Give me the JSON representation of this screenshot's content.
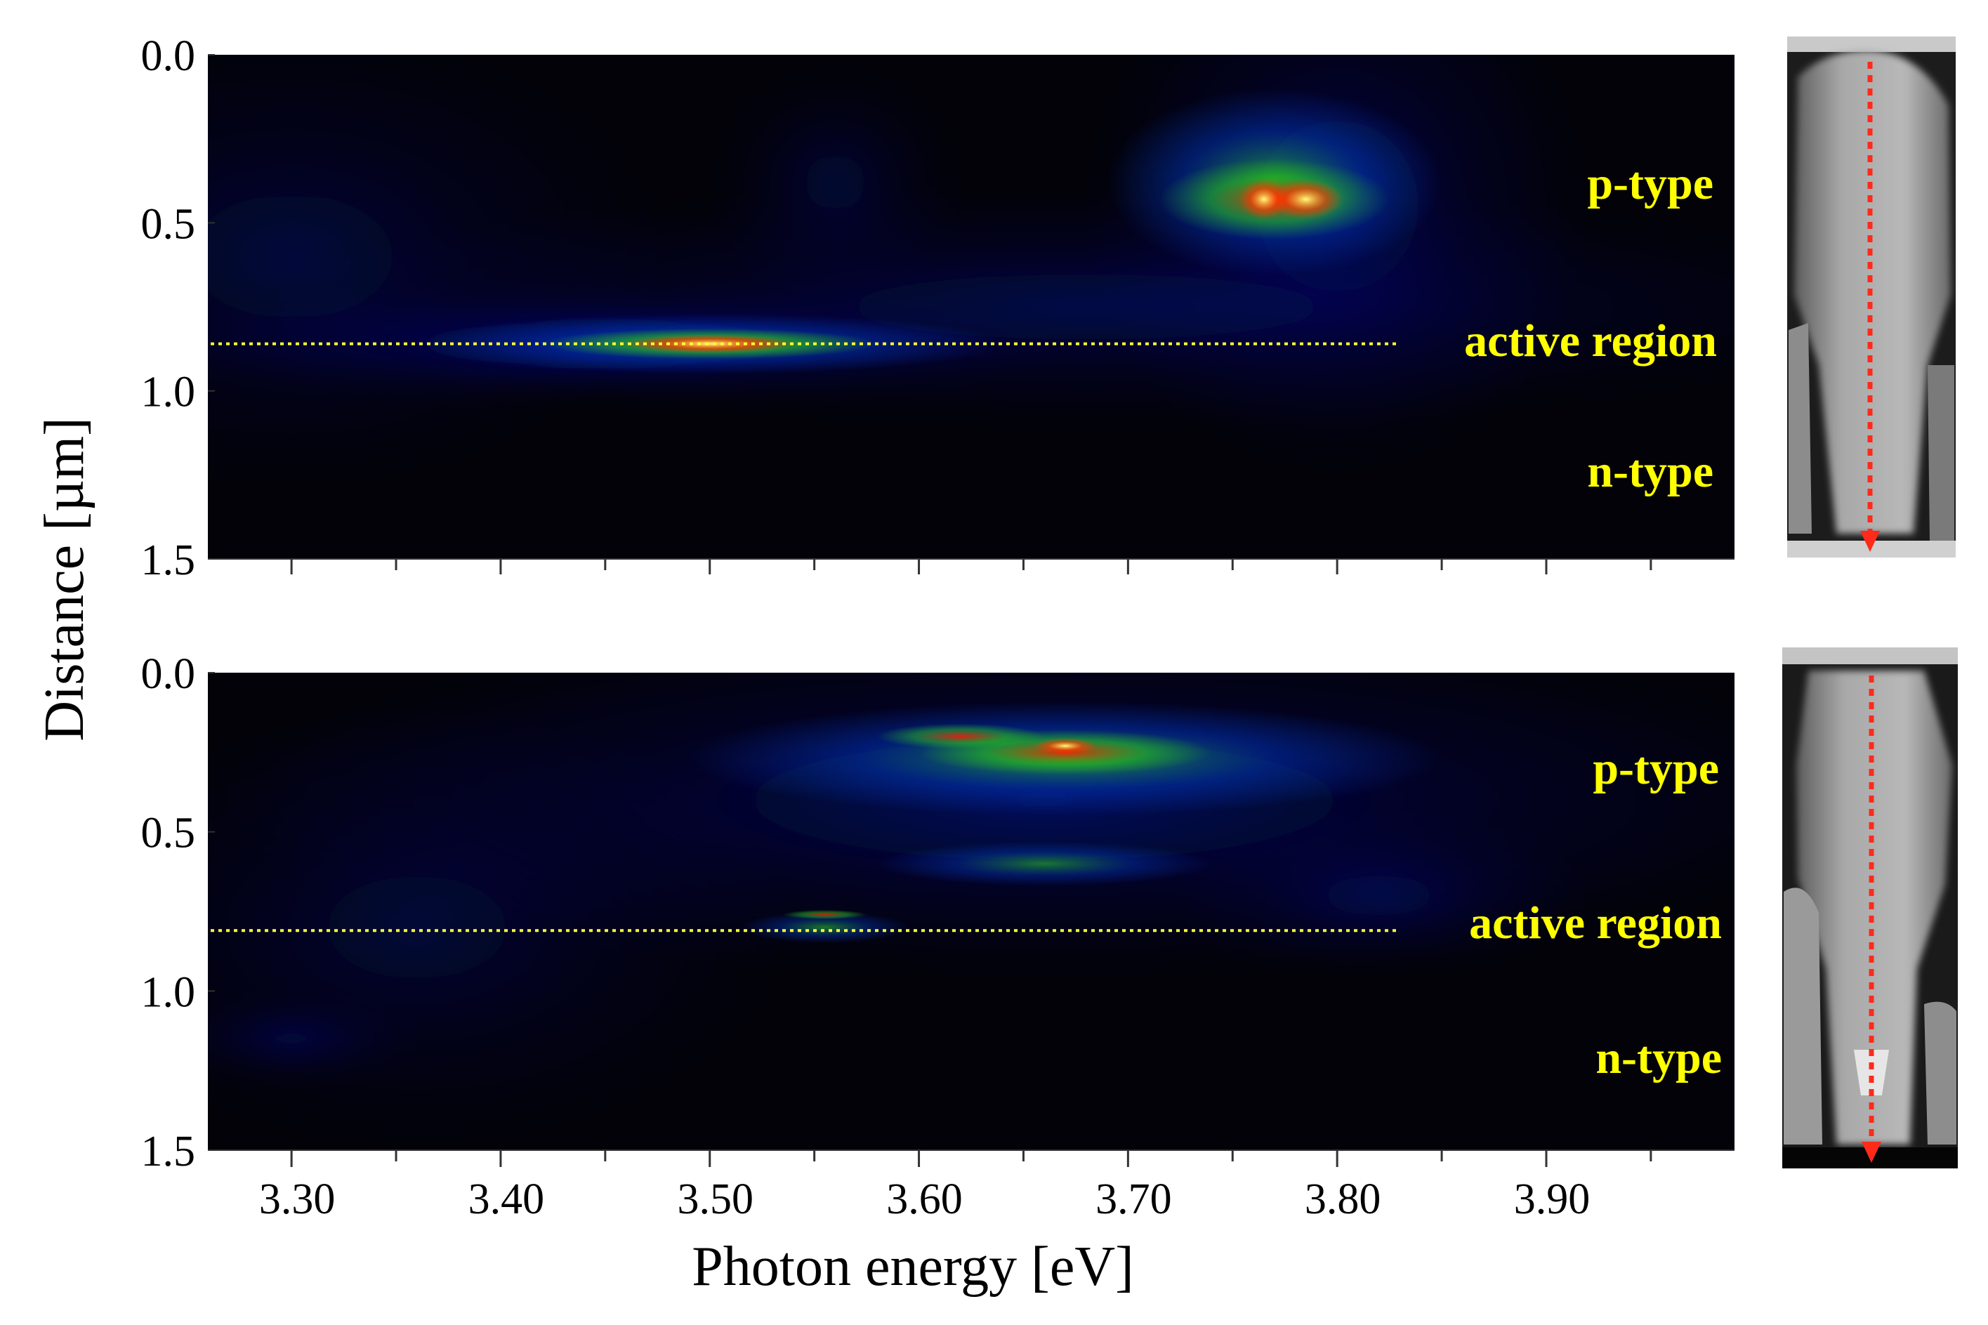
{
  "chart_data": {
    "type": "heatmap",
    "description_axes": "shared x axis",
    "xlabel": "Photon energy [eV]",
    "ylabel": "Distance [µm]",
    "xlim": [
      3.26,
      3.99
    ],
    "x_ticks_major": [
      3.3,
      3.4,
      3.5,
      3.6,
      3.7,
      3.8,
      3.9
    ],
    "x_tick_labels": [
      "3.30",
      "3.40",
      "3.50",
      "3.60",
      "3.70",
      "3.80",
      "3.90"
    ],
    "x_ticks_minor": [
      3.35,
      3.45,
      3.55,
      3.65,
      3.75,
      3.85,
      3.95
    ],
    "panels": [
      {
        "name": "top",
        "ylim": [
          0.0,
          1.5
        ],
        "y_tick_labels": [
          "0.0",
          "0.5",
          "1.0",
          "1.5"
        ],
        "y_ticks": [
          0.0,
          0.5,
          1.0,
          1.5
        ],
        "active_region_depth": 0.86,
        "labels": {
          "p_type": "p-type",
          "active_region": "active region",
          "n_type": "n-type"
        },
        "blobs": [
          {
            "energy": 3.8,
            "depth": 0.45,
            "energy_spread": 0.12,
            "depth_spread": 0.8,
            "intensity": 0.32,
            "color": "blue"
          },
          {
            "energy": 3.68,
            "depth": 0.75,
            "energy_spread": 0.4,
            "depth_spread": 0.35,
            "intensity": 0.28,
            "color": "blue"
          },
          {
            "energy": 3.45,
            "depth": 0.86,
            "energy_spread": 0.22,
            "depth_spread": 0.16,
            "intensity": 0.45,
            "color": "blue"
          },
          {
            "energy": 3.3,
            "depth": 0.6,
            "energy_spread": 0.18,
            "depth_spread": 0.7,
            "intensity": 0.22,
            "color": "blue"
          },
          {
            "energy": 3.56,
            "depth": 0.38,
            "energy_spread": 0.06,
            "depth_spread": 0.35,
            "intensity": 0.2,
            "color": "blue"
          },
          {
            "energy": 3.5,
            "depth": 0.86,
            "energy_spread": 0.14,
            "depth_spread": 0.09,
            "intensity": 0.7,
            "color": "green"
          },
          {
            "energy": 3.5,
            "depth": 0.86,
            "energy_spread": 0.08,
            "depth_spread": 0.045,
            "intensity": 0.85,
            "color": "red"
          },
          {
            "energy": 3.5,
            "depth": 0.86,
            "energy_spread": 0.04,
            "depth_spread": 0.028,
            "intensity": 1.0,
            "color": "yellow"
          },
          {
            "energy": 3.77,
            "depth": 0.38,
            "energy_spread": 0.08,
            "depth_spread": 0.28,
            "intensity": 0.75,
            "color": "green"
          },
          {
            "energy": 3.77,
            "depth": 0.43,
            "energy_spread": 0.055,
            "depth_spread": 0.12,
            "intensity": 0.9,
            "color": "red"
          },
          {
            "energy": 3.785,
            "depth": 0.43,
            "energy_spread": 0.018,
            "depth_spread": 0.06,
            "intensity": 1.0,
            "color": "yellow"
          },
          {
            "energy": 3.765,
            "depth": 0.43,
            "energy_spread": 0.012,
            "depth_spread": 0.06,
            "intensity": 1.0,
            "color": "yellow"
          }
        ]
      },
      {
        "name": "bottom",
        "ylim": [
          0.0,
          1.5
        ],
        "y_tick_labels": [
          "0.0",
          "0.5",
          "1.0",
          "1.5"
        ],
        "y_ticks": [
          0.0,
          0.5,
          1.0,
          1.5
        ],
        "active_region_depth": 0.81,
        "labels": {
          "p_type": "p-type",
          "active_region": "active region",
          "n_type": "n-type"
        },
        "blobs": [
          {
            "energy": 3.66,
            "depth": 0.4,
            "energy_spread": 0.4,
            "depth_spread": 0.55,
            "intensity": 0.35,
            "color": "blue"
          },
          {
            "energy": 3.36,
            "depth": 0.8,
            "energy_spread": 0.18,
            "depth_spread": 0.7,
            "intensity": 0.2,
            "color": "blue"
          },
          {
            "energy": 3.3,
            "depth": 1.15,
            "energy_spread": 0.06,
            "depth_spread": 0.12,
            "intensity": 0.25,
            "color": "blue"
          },
          {
            "energy": 3.82,
            "depth": 0.7,
            "energy_spread": 0.1,
            "depth_spread": 0.25,
            "intensity": 0.25,
            "color": "blue"
          },
          {
            "energy": 3.67,
            "depth": 0.27,
            "energy_spread": 0.18,
            "depth_spread": 0.18,
            "intensity": 0.75,
            "color": "green"
          },
          {
            "energy": 3.67,
            "depth": 0.25,
            "energy_spread": 0.07,
            "depth_spread": 0.07,
            "intensity": 0.9,
            "color": "red"
          },
          {
            "energy": 3.62,
            "depth": 0.2,
            "energy_spread": 0.04,
            "depth_spread": 0.04,
            "intensity": 0.85,
            "color": "red"
          },
          {
            "energy": 3.67,
            "depth": 0.23,
            "energy_spread": 0.015,
            "depth_spread": 0.025,
            "intensity": 1.0,
            "color": "yellow"
          },
          {
            "energy": 3.66,
            "depth": 0.6,
            "energy_spread": 0.08,
            "depth_spread": 0.07,
            "intensity": 0.6,
            "color": "green"
          },
          {
            "energy": 3.555,
            "depth": 0.8,
            "energy_spread": 0.04,
            "depth_spread": 0.05,
            "intensity": 0.6,
            "color": "green"
          },
          {
            "energy": 3.555,
            "depth": 0.76,
            "energy_spread": 0.02,
            "depth_spread": 0.015,
            "intensity": 0.8,
            "color": "red"
          }
        ]
      }
    ]
  },
  "insets": [
    {
      "name": "top-sem",
      "arrow_color": "#ff2a1a"
    },
    {
      "name": "bottom-sem",
      "arrow_color": "#ff2a1a"
    }
  ],
  "colors": {
    "panel_bg": "#020208",
    "label_yellow": "#ffff00",
    "dotted_line": "#ffff33",
    "sem_grey": "#8a8a8a"
  }
}
